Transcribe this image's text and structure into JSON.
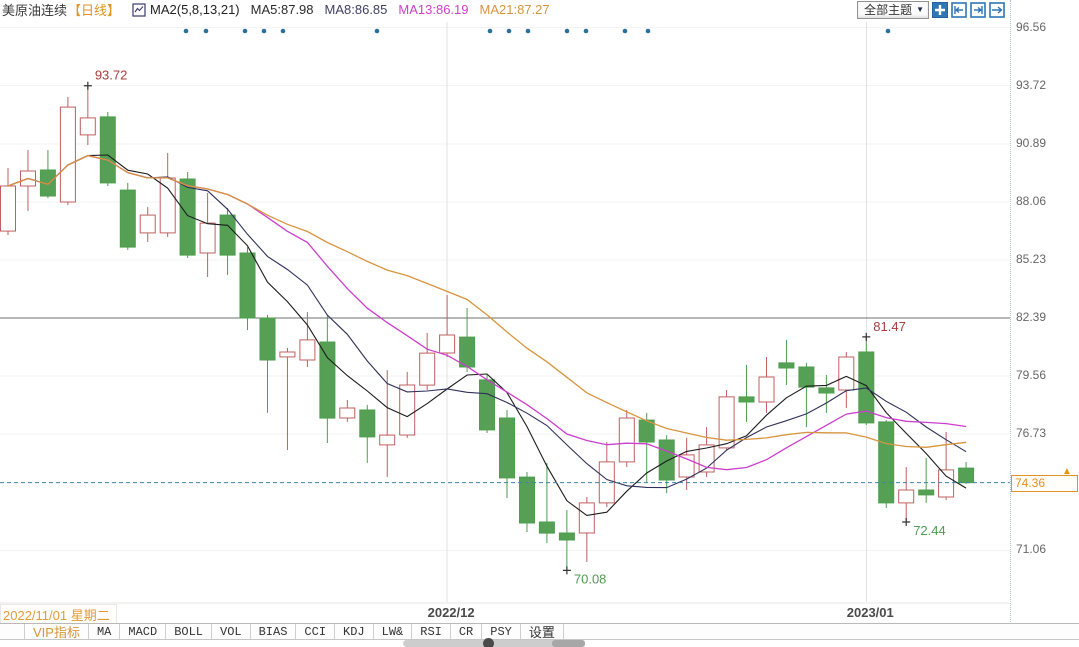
{
  "header": {
    "symbol": "美原油连续",
    "period": "【日线】",
    "ma_group": "MA2(5,8,13,21)",
    "ma_values": [
      {
        "name": "MA5",
        "text": "MA5:87.98",
        "color": "#2b2b2b"
      },
      {
        "name": "MA8",
        "text": "MA8:86.85",
        "color": "#3f3f64"
      },
      {
        "name": "MA13",
        "text": "MA13:86.19",
        "color": "#cc3fcc"
      },
      {
        "name": "MA21",
        "text": "MA21:87.27",
        "color": "#d8953e"
      }
    ],
    "theme_selector": "全部主题",
    "dropdown_arrow": "▼"
  },
  "date_readout": "2022/11/01 星期二",
  "toolbar": {
    "items": [
      "VIP指标",
      "MA",
      "MACD",
      "BOLL",
      "VOL",
      "BIAS",
      "CCI",
      "KDJ",
      "LW&",
      "RSI",
      "CR",
      "PSY",
      "设置"
    ],
    "active": "VIP指标"
  },
  "chart_data": {
    "type": "candlestick",
    "title": "美原油连续 日线",
    "symbol": "美原油连续",
    "period": "日线",
    "y_ticks": [
      96.56,
      93.72,
      90.89,
      88.06,
      85.23,
      82.39,
      79.56,
      76.73,
      71.06
    ],
    "reference_line": 82.39,
    "current_price": 74.36,
    "current_price_label": "74.36",
    "x_labels": [
      {
        "text": "2022/12",
        "index": 22
      },
      {
        "text": "2023/01",
        "index": 43
      }
    ],
    "start_date_label": "2022/11/01 星期二",
    "ma_periods": [
      5,
      8,
      13,
      21
    ],
    "ma_colors": {
      "ma5": "#1c1c1c",
      "ma8": "#30305a",
      "ma13": "#cc3fcc",
      "ma21": "#d8953e"
    },
    "up_color": "#c05f5f",
    "down_color": "#4d9e4d",
    "down_fill": "#55a055",
    "annotations": [
      {
        "type": "high",
        "label": "93.72",
        "price": 93.72,
        "index": 4,
        "color": "#a83c3c"
      },
      {
        "type": "high",
        "label": "81.47",
        "price": 81.47,
        "index": 43,
        "color": "#a83c3c"
      },
      {
        "type": "low",
        "label": "70.08",
        "price": 70.08,
        "index": 28,
        "color": "#4f9b4f"
      },
      {
        "type": "low",
        "label": "72.44",
        "price": 72.44,
        "index": 45,
        "color": "#4f9b4f"
      }
    ],
    "candles": [
      [
        86.63,
        89.71,
        86.44,
        88.83
      ],
      [
        88.83,
        90.58,
        87.61,
        89.56
      ],
      [
        89.61,
        90.58,
        88.24,
        88.34
      ],
      [
        88.05,
        93.17,
        87.9,
        92.68
      ],
      [
        91.32,
        93.72,
        90.83,
        92.15
      ],
      [
        92.2,
        92.44,
        88.83,
        88.98
      ],
      [
        88.63,
        88.98,
        85.71,
        85.85
      ],
      [
        86.54,
        87.8,
        86.1,
        87.41
      ],
      [
        86.54,
        90.44,
        86.34,
        89.22
      ],
      [
        89.17,
        89.51,
        85.32,
        85.46
      ],
      [
        85.56,
        88.49,
        84.39,
        87.02
      ],
      [
        87.41,
        87.76,
        84.49,
        85.46
      ],
      [
        85.56,
        85.85,
        81.8,
        82.39
      ],
      [
        82.39,
        82.54,
        77.76,
        80.34
      ],
      [
        80.49,
        80.93,
        75.95,
        80.73
      ],
      [
        80.34,
        82.68,
        80.0,
        81.32
      ],
      [
        81.22,
        82.54,
        76.29,
        77.51
      ],
      [
        77.51,
        78.39,
        77.32,
        78.0
      ],
      [
        77.9,
        78.15,
        75.32,
        76.59
      ],
      [
        76.2,
        79.85,
        74.63,
        76.68
      ],
      [
        76.68,
        79.76,
        76.54,
        79.12
      ],
      [
        79.12,
        81.66,
        78.88,
        80.68
      ],
      [
        80.68,
        83.51,
        80.49,
        81.56
      ],
      [
        81.46,
        82.88,
        79.76,
        80.0
      ],
      [
        79.37,
        79.61,
        76.78,
        76.93
      ],
      [
        77.51,
        77.9,
        73.61,
        74.59
      ],
      [
        74.63,
        74.88,
        71.95,
        72.39
      ],
      [
        72.44,
        75.32,
        71.41,
        71.9
      ],
      [
        71.9,
        73.02,
        70.08,
        71.56
      ],
      [
        71.9,
        73.66,
        70.49,
        73.37
      ],
      [
        73.37,
        76.34,
        73.17,
        75.37
      ],
      [
        75.37,
        77.9,
        75.12,
        77.51
      ],
      [
        77.41,
        77.76,
        74.34,
        76.34
      ],
      [
        76.44,
        76.68,
        73.85,
        74.49
      ],
      [
        74.63,
        76.54,
        74.0,
        75.71
      ],
      [
        74.88,
        77.07,
        74.63,
        76.2
      ],
      [
        76.05,
        78.88,
        75.95,
        78.54
      ],
      [
        78.54,
        80.1,
        77.32,
        78.29
      ],
      [
        78.29,
        80.49,
        77.76,
        79.51
      ],
      [
        80.2,
        81.32,
        79.12,
        79.95
      ],
      [
        80.0,
        80.2,
        77.07,
        79.02
      ],
      [
        78.98,
        79.61,
        77.76,
        78.73
      ],
      [
        78.88,
        80.73,
        78.0,
        80.49
      ],
      [
        80.73,
        81.47,
        77.17,
        77.27
      ],
      [
        77.32,
        77.41,
        73.12,
        73.37
      ],
      [
        73.37,
        75.12,
        72.44,
        74.0
      ],
      [
        74.0,
        75.56,
        73.37,
        73.76
      ],
      [
        73.66,
        76.83,
        73.51,
        74.98
      ],
      [
        75.07,
        75.37,
        74.3,
        74.36
      ]
    ],
    "event_dots_x": [
      186,
      206,
      245,
      264,
      283,
      377,
      490,
      509,
      528,
      567,
      586,
      625,
      648,
      888
    ]
  }
}
